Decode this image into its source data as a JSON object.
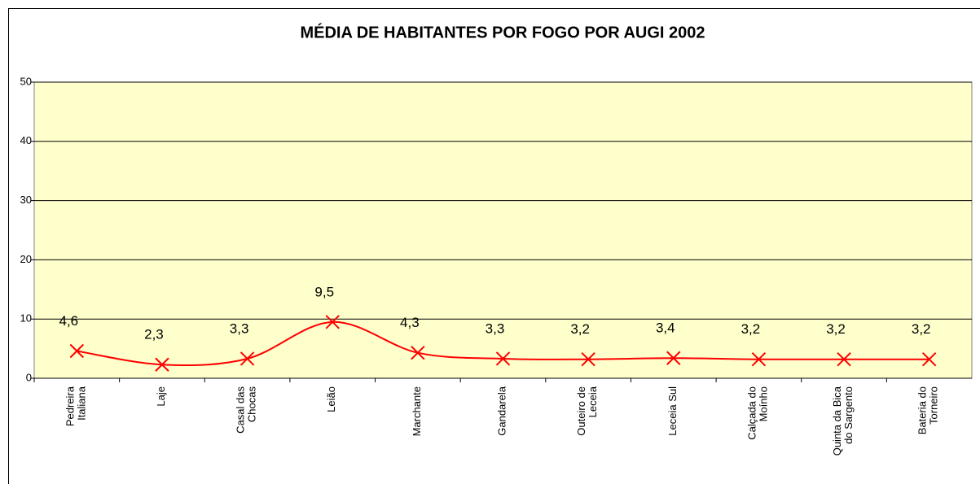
{
  "chart_data": {
    "type": "line",
    "title": "MÉDIA DE HABITANTES POR FOGO POR AUGI  2002",
    "categories": [
      "Pedreira\nItaliana",
      "Laje",
      "Casal das\nChocas",
      "Leião",
      "Marchante",
      "Gandarela",
      "Outeiro de\nLeceia",
      "Leceia Sul",
      "Calçada do\nMoínho",
      "Quinta da Bica\ndo Sargento",
      "Bateria do\nTorneiro"
    ],
    "values": [
      4.6,
      2.3,
      3.3,
      9.5,
      4.3,
      3.3,
      3.2,
      3.4,
      3.2,
      3.2,
      3.2
    ],
    "value_labels": [
      "4,6",
      "2,3",
      "3,3",
      "9,5",
      "4,3",
      "3,3",
      "3,2",
      "3,4",
      "3,2",
      "3,2",
      "3,2"
    ],
    "color": "#ff0000",
    "ylim": [
      0,
      50
    ],
    "yticks": [
      0,
      10,
      20,
      30,
      40,
      50
    ],
    "grid": true,
    "smooth": true
  }
}
